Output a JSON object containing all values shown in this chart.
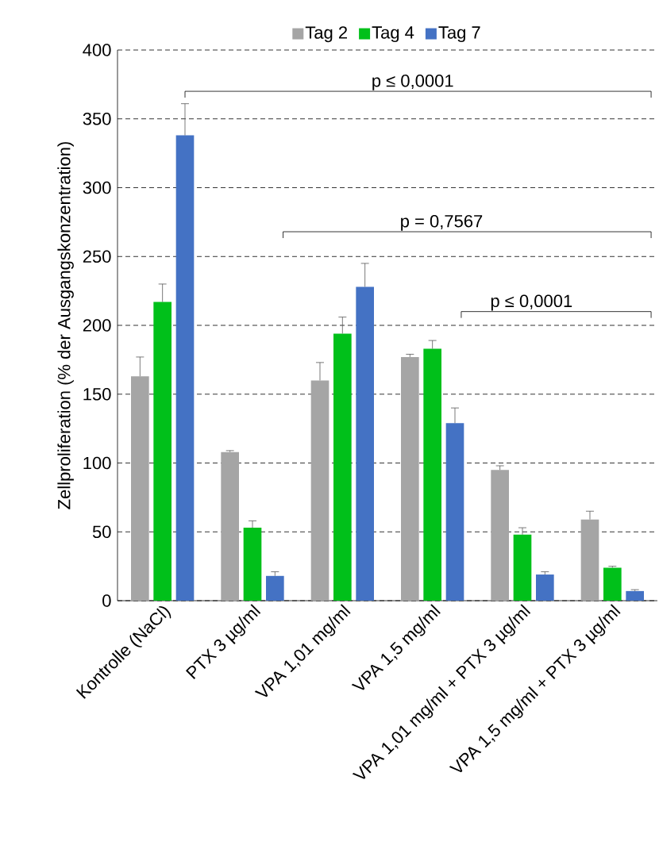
{
  "chart_data": {
    "type": "bar",
    "ylabel": "Zellproliferation (% der Ausgangskonzentration)",
    "categories": [
      "Kontrolle (NaCl)",
      "PTX 3 µg/ml",
      "VPA 1,01 mg/ml",
      "VPA 1,5 mg/ml",
      "VPA 1,01 mg/ml + PTX 3 µg/ml",
      "VPA 1,5 mg/ml + PTX 3 µg/ml"
    ],
    "series": [
      {
        "name": "Tag 2",
        "color": "#a5a5a5",
        "values": [
          163,
          108,
          160,
          177,
          95,
          59
        ],
        "errors": [
          14,
          1,
          13,
          2,
          3,
          6
        ]
      },
      {
        "name": "Tag 4",
        "color": "#00c01a",
        "values": [
          217,
          53,
          194,
          183,
          48,
          24
        ],
        "errors": [
          13,
          5,
          12,
          6,
          5,
          1
        ]
      },
      {
        "name": "Tag 7",
        "color": "#4472c4",
        "values": [
          338,
          18,
          228,
          129,
          19,
          7
        ],
        "errors": [
          23,
          3,
          17,
          11,
          2,
          1
        ]
      }
    ],
    "ylim": [
      0,
      400
    ],
    "yticks": [
      0,
      50,
      100,
      150,
      200,
      250,
      300,
      350,
      400
    ],
    "grid": "y",
    "legend": "top",
    "annotations": [
      "p ≤ 0,0001",
      "p = 0,7567",
      "p ≤ 0,0001"
    ]
  }
}
